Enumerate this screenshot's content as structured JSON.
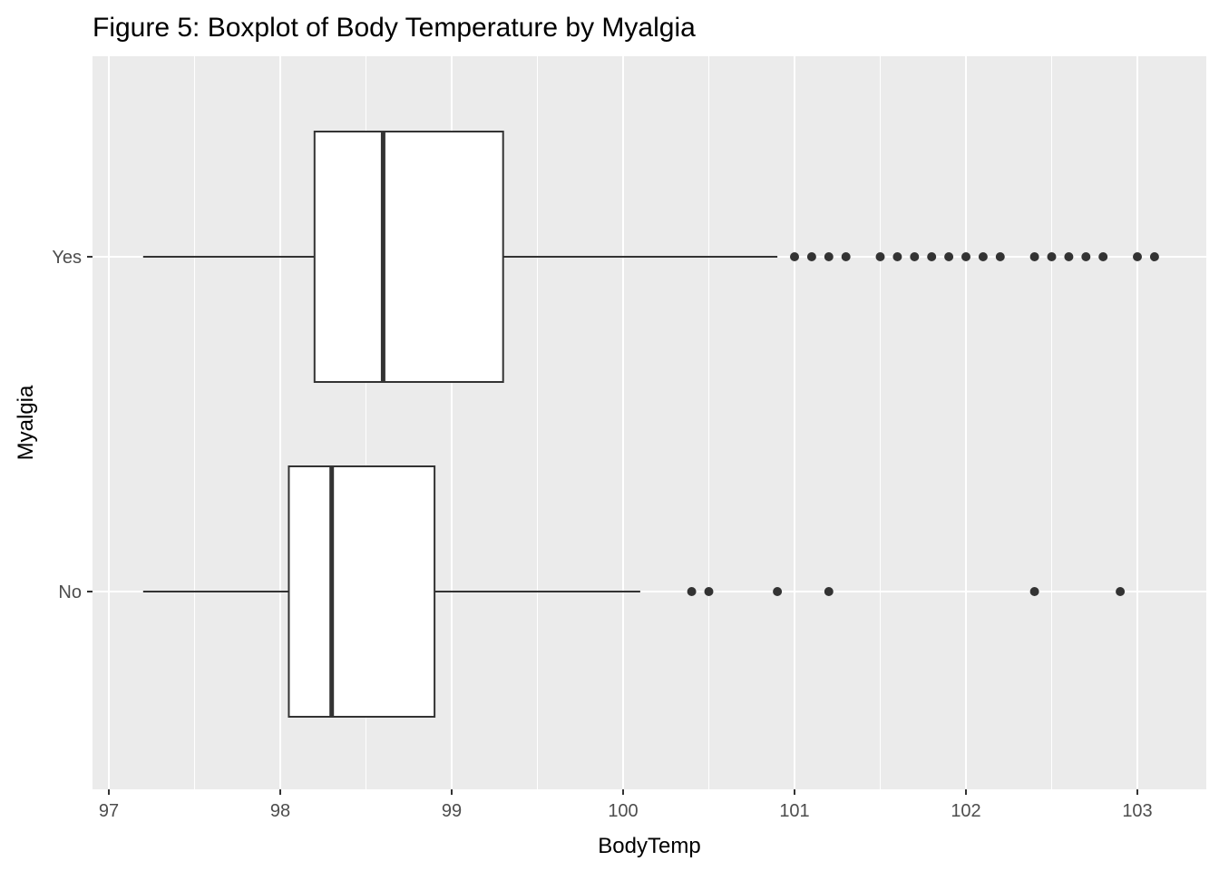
{
  "chart_data": {
    "type": "boxplot",
    "orientation": "horizontal",
    "title": "Figure 5: Boxplot of Body Temperature by Myalgia",
    "xlabel": "BodyTemp",
    "ylabel": "Myalgia",
    "xlim": [
      97,
      103.2
    ],
    "x_ticks": [
      97,
      98,
      99,
      100,
      101,
      102,
      103
    ],
    "categories": [
      "No",
      "Yes"
    ],
    "grid": true,
    "legend": "none",
    "colors": {
      "panel": "#ebebeb",
      "grid": "#ffffff",
      "box_fill": "#ffffff",
      "stroke": "#333333",
      "tick_text": "#4d4d4d"
    },
    "series": [
      {
        "category": "No",
        "whisker_low": 97.2,
        "q1": 98.05,
        "median": 98.3,
        "q3": 98.9,
        "whisker_high": 100.1,
        "outliers": [
          100.4,
          100.5,
          100.9,
          101.2,
          102.4,
          102.9
        ]
      },
      {
        "category": "Yes",
        "whisker_low": 97.2,
        "q1": 98.2,
        "median": 98.6,
        "q3": 99.3,
        "whisker_high": 100.9,
        "outliers": [
          101.0,
          101.1,
          101.2,
          101.3,
          101.5,
          101.6,
          101.7,
          101.8,
          101.9,
          102.0,
          102.1,
          102.2,
          102.4,
          102.5,
          102.6,
          102.7,
          102.8,
          103.0,
          103.1
        ]
      }
    ]
  }
}
